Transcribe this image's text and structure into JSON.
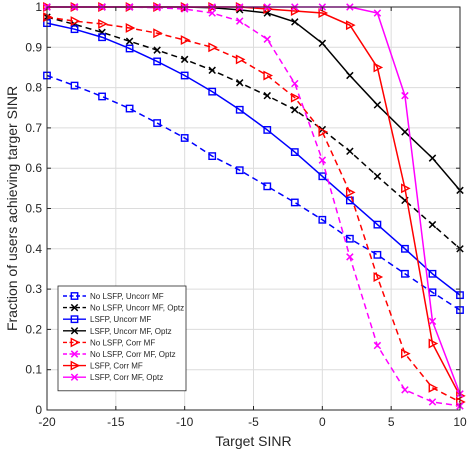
{
  "chart_data": {
    "type": "line",
    "title": "",
    "xlabel": "Target SINR",
    "ylabel": "Fraction of users achieving targer SINR",
    "xlim": [
      -20,
      10
    ],
    "ylim": [
      0,
      1
    ],
    "x_ticks": [
      "-20",
      "-15",
      "-10",
      "-5",
      "0",
      "5",
      "10"
    ],
    "y_ticks": [
      "0",
      "0.1",
      "0.2",
      "0.3",
      "0.4",
      "0.5",
      "0.6",
      "0.7",
      "0.8",
      "0.9",
      "1"
    ],
    "grid": true,
    "legend_position": "bottom-left",
    "x": [
      -20,
      -18,
      -16,
      -14,
      -12,
      -10,
      -8,
      -6,
      -4,
      -2,
      0,
      2,
      4,
      6,
      8,
      10
    ],
    "series": [
      {
        "name": "No LSFP, Uncorr MF",
        "color": "#0000ff",
        "dash": "dashed",
        "marker": "square",
        "values": [
          0.83,
          0.805,
          0.778,
          0.748,
          0.712,
          0.675,
          0.63,
          0.595,
          0.555,
          0.515,
          0.472,
          0.425,
          0.385,
          0.338,
          0.292,
          0.248
        ]
      },
      {
        "name": "No LSFP, Uncorr MF, Optz",
        "color": "#000000",
        "dash": "dashed",
        "marker": "x",
        "values": [
          0.975,
          0.957,
          0.937,
          0.915,
          0.893,
          0.87,
          0.843,
          0.812,
          0.78,
          0.745,
          0.696,
          0.642,
          0.58,
          0.52,
          0.46,
          0.4
        ]
      },
      {
        "name": "LSFP, Uncorr MF",
        "color": "#0000ff",
        "dash": "solid",
        "marker": "square",
        "values": [
          0.96,
          0.945,
          0.925,
          0.897,
          0.865,
          0.83,
          0.79,
          0.745,
          0.695,
          0.64,
          0.58,
          0.52,
          0.46,
          0.4,
          0.338,
          0.285
        ]
      },
      {
        "name": "LSFP, Uncorr MF, Optz",
        "color": "#000000",
        "dash": "solid",
        "marker": "x",
        "values": [
          1.0,
          1.0,
          1.0,
          1.0,
          1.0,
          1.0,
          0.998,
          0.993,
          0.985,
          0.963,
          0.91,
          0.83,
          0.757,
          0.69,
          0.625,
          0.545
        ]
      },
      {
        "name": "No LSFP, Corr MF",
        "color": "#ff0000",
        "dash": "dashed",
        "marker": "triangle",
        "values": [
          0.975,
          0.965,
          0.958,
          0.948,
          0.935,
          0.918,
          0.9,
          0.87,
          0.83,
          0.775,
          0.69,
          0.54,
          0.33,
          0.14,
          0.055,
          0.02
        ]
      },
      {
        "name": "No LSFP, Corr MF, Optz",
        "color": "#ff00ff",
        "dash": "dashed",
        "marker": "x",
        "values": [
          1.0,
          1.0,
          1.0,
          1.0,
          0.998,
          0.995,
          0.985,
          0.965,
          0.92,
          0.81,
          0.62,
          0.38,
          0.16,
          0.05,
          0.02,
          0.01
        ]
      },
      {
        "name": "LSFP, Corr MF",
        "color": "#ff0000",
        "dash": "solid",
        "marker": "triangle",
        "values": [
          1.0,
          1.0,
          1.0,
          1.0,
          1.0,
          1.0,
          1.0,
          1.0,
          0.995,
          0.99,
          0.985,
          0.955,
          0.85,
          0.55,
          0.165,
          0.035
        ]
      },
      {
        "name": "LSFP, Corr MF, Optz",
        "color": "#ff00ff",
        "dash": "solid",
        "marker": "x",
        "values": [
          1.0,
          1.0,
          1.0,
          1.0,
          1.0,
          1.0,
          1.0,
          1.0,
          1.0,
          1.0,
          1.0,
          1.0,
          0.985,
          0.78,
          0.22,
          0.04
        ]
      }
    ]
  }
}
